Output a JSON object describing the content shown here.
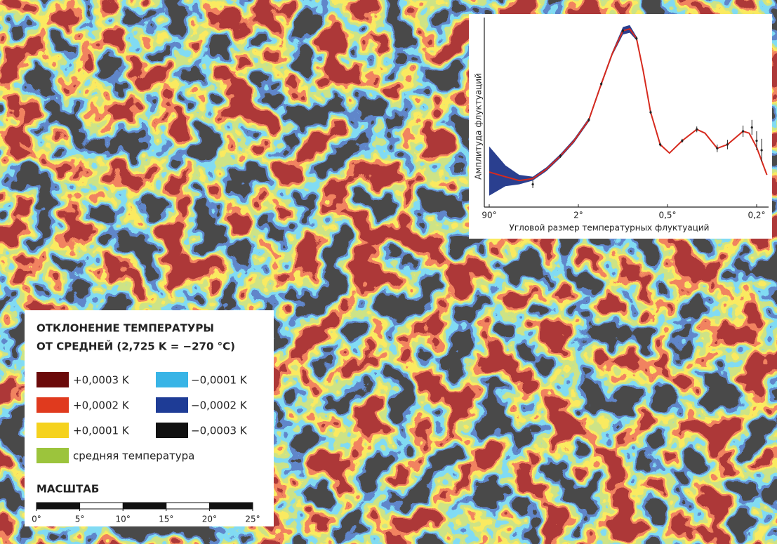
{
  "chart_data": {
    "type": "line",
    "x_label": "Угловой размер температурных флуктуаций",
    "y_label": "Амплитуда флуктуаций",
    "xlim": [
      90,
      0.18
    ],
    "xticks": [
      {
        "value": 90,
        "label": "90°"
      },
      {
        "value": 2,
        "label": "2°"
      },
      {
        "value": 0.5,
        "label": "0,5°"
      },
      {
        "value": 0.2,
        "label": "0,2°"
      }
    ],
    "ylim": [
      0,
      100
    ],
    "band": {
      "color": "#2a3f8f",
      "x": [
        90,
        45,
        25,
        14,
        7.8,
        4.3,
        2.4,
        1.7,
        1.4,
        1.18,
        1.0,
        0.9,
        0.81
      ],
      "lower": [
        6,
        11,
        12,
        14,
        19,
        26,
        34,
        45,
        64,
        80,
        91,
        92,
        88
      ],
      "upper": [
        32,
        22,
        17,
        16,
        21,
        28,
        36,
        47,
        66,
        82,
        95,
        96,
        90
      ]
    },
    "series": [
      {
        "color": "#d62a1e",
        "x": [
          90,
          45,
          25,
          14,
          7.8,
          4.3,
          2.4,
          1.7,
          1.4,
          1.18,
          1.0,
          0.9,
          0.81,
          0.73,
          0.65,
          0.56,
          0.49,
          0.43,
          0.37,
          0.34,
          0.3,
          0.27,
          0.23,
          0.216,
          0.2,
          0.18
        ],
        "values": [
          18.5,
          16,
          14,
          15,
          20,
          27,
          35,
          46,
          65,
          81,
          93,
          94,
          89,
          72,
          50,
          33,
          28.5,
          35,
          41,
          39,
          31,
          33,
          40,
          39,
          31.5,
          17
        ]
      }
    ],
    "points": {
      "color": "#222222",
      "x": [
        14,
        4.3,
        1.7,
        1.4,
        1.0,
        0.81,
        0.65,
        0.56,
        0.43,
        0.37,
        0.3,
        0.27,
        0.23,
        0.21,
        0.2,
        0.19
      ],
      "values": [
        12,
        27,
        46,
        65,
        93,
        89,
        50,
        33,
        35,
        41,
        31,
        33,
        40,
        42,
        35,
        30
      ],
      "errors": [
        2,
        1,
        1,
        1,
        1,
        1,
        1,
        1,
        1,
        1.5,
        2,
        2.5,
        3,
        4,
        5,
        6
      ]
    },
    "legend": {
      "title": [
        "ОТКЛОНЕНИЕ ТЕМПЕРАТУРЫ",
        "ОТ СРЕДНЕЙ (2,725 K = −270 °C)"
      ],
      "items": [
        {
          "label": "+0,0003 K",
          "color": "#6b0a0a"
        },
        {
          "label": "+0,0002 K",
          "color": "#e03a1e"
        },
        {
          "label": "+0,0001 K",
          "color": "#f5d21e"
        },
        {
          "label": "средняя температура",
          "color": "#9cc43c"
        },
        {
          "label": "−0,0001 K",
          "color": "#38b4e6"
        },
        {
          "label": "−0,0002 K",
          "color": "#1e3c96"
        },
        {
          "label": "−0,0003 K",
          "color": "#111111"
        }
      ],
      "scale_title": "МАСШТАБ",
      "scale_ticks": [
        {
          "value": 0,
          "label": "0°"
        },
        {
          "value": 5,
          "label": "5°"
        },
        {
          "value": 10,
          "label": "10°"
        },
        {
          "value": 15,
          "label": "15°"
        },
        {
          "value": 20,
          "label": "20°"
        },
        {
          "value": 25,
          "label": "25°"
        }
      ]
    }
  }
}
